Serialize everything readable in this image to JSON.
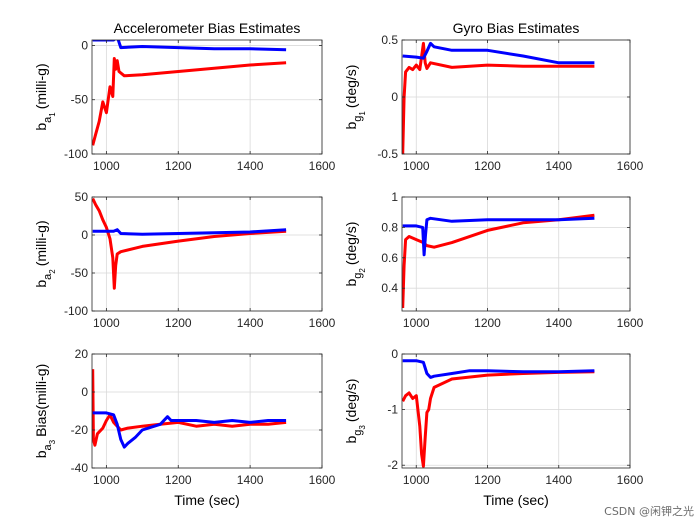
{
  "watermark": "CSDN @闲钾之光",
  "colors": {
    "red": "#ff0000",
    "blue": "#0000ff",
    "axis": "#262626",
    "grid": "#d9d9d9"
  },
  "chart_data": [
    {
      "id": "acc1",
      "type": "line",
      "title": "Accelerometer Bias Estimates",
      "ylabel": {
        "main": "b",
        "sub": "a",
        "subsub": "1",
        "unit": "(milli-g)"
      },
      "xlabel": "",
      "xlim": [
        960,
        1600
      ],
      "ylim": [
        -100,
        5
      ],
      "xticks": [
        1000,
        1200,
        1400,
        1600
      ],
      "yticks": [
        0,
        -50,
        -100
      ],
      "grid": true,
      "series": [
        {
          "name": "red",
          "color": "#ff0000",
          "x": [
            962,
            970,
            980,
            990,
            1000,
            1010,
            1018,
            1022,
            1026,
            1030,
            1035,
            1050,
            1100,
            1200,
            1300,
            1400,
            1500
          ],
          "y": [
            -92,
            -82,
            -70,
            -52,
            -62,
            -38,
            -47,
            -12,
            -22,
            -14,
            -24,
            -28,
            -27,
            -24,
            -21,
            -18,
            -16
          ]
        },
        {
          "name": "blue",
          "color": "#0000ff",
          "x": [
            962,
            1000,
            1020,
            1030,
            1040,
            1100,
            1200,
            1300,
            1400,
            1500
          ],
          "y": [
            5,
            5,
            5,
            8,
            -2,
            -1,
            -2,
            -3,
            -3,
            -4
          ]
        }
      ]
    },
    {
      "id": "gyr1",
      "type": "line",
      "title": "Gyro Bias Estimates",
      "ylabel": {
        "main": "b",
        "sub": "g",
        "subsub": "1",
        "unit": "(deg/s)"
      },
      "xlabel": "",
      "xlim": [
        960,
        1600
      ],
      "ylim": [
        -0.5,
        0.5
      ],
      "xticks": [
        1000,
        1200,
        1400,
        1600
      ],
      "yticks": [
        0.5,
        0,
        -0.5
      ],
      "grid": true,
      "series": [
        {
          "name": "red",
          "color": "#ff0000",
          "x": [
            962,
            966,
            970,
            980,
            990,
            1000,
            1010,
            1020,
            1025,
            1030,
            1040,
            1100,
            1200,
            1300,
            1400,
            1500
          ],
          "y": [
            -0.5,
            0.0,
            0.22,
            0.26,
            0.24,
            0.28,
            0.24,
            0.47,
            0.3,
            0.25,
            0.3,
            0.26,
            0.28,
            0.27,
            0.27,
            0.27
          ]
        },
        {
          "name": "blue",
          "color": "#0000ff",
          "x": [
            962,
            1000,
            1020,
            1030,
            1040,
            1050,
            1100,
            1200,
            1300,
            1400,
            1500
          ],
          "y": [
            0.36,
            0.35,
            0.34,
            0.4,
            0.47,
            0.44,
            0.41,
            0.41,
            0.36,
            0.3,
            0.3
          ]
        }
      ]
    },
    {
      "id": "acc2",
      "type": "line",
      "title": "",
      "ylabel": {
        "main": "b",
        "sub": "a",
        "subsub": "2",
        "unit": "(milli-g)"
      },
      "xlabel": "",
      "xlim": [
        960,
        1600
      ],
      "ylim": [
        -100,
        50
      ],
      "xticks": [
        1000,
        1200,
        1400,
        1600
      ],
      "yticks": [
        50,
        0,
        -50,
        -100
      ],
      "grid": true,
      "series": [
        {
          "name": "red",
          "color": "#ff0000",
          "x": [
            962,
            970,
            980,
            990,
            1000,
            1010,
            1018,
            1022,
            1026,
            1030,
            1040,
            1100,
            1200,
            1300,
            1400,
            1500
          ],
          "y": [
            48,
            40,
            32,
            20,
            10,
            -5,
            -30,
            -70,
            -40,
            -25,
            -22,
            -15,
            -8,
            -2,
            2,
            5
          ]
        },
        {
          "name": "blue",
          "color": "#0000ff",
          "x": [
            962,
            1000,
            1020,
            1030,
            1040,
            1100,
            1200,
            1300,
            1400,
            1500
          ],
          "y": [
            5,
            5,
            5,
            7,
            2,
            1,
            2,
            3,
            4,
            7
          ]
        }
      ]
    },
    {
      "id": "gyr2",
      "type": "line",
      "title": "",
      "ylabel": {
        "main": "b",
        "sub": "g",
        "subsub": "2",
        "unit": "(deg/s)"
      },
      "xlabel": "",
      "xlim": [
        960,
        1600
      ],
      "ylim": [
        0.25,
        1
      ],
      "xticks": [
        1000,
        1200,
        1400,
        1600
      ],
      "yticks": [
        1,
        0.8,
        0.6,
        0.4
      ],
      "grid": true,
      "series": [
        {
          "name": "red",
          "color": "#ff0000",
          "x": [
            962,
            966,
            970,
            980,
            1000,
            1020,
            1030,
            1050,
            1100,
            1200,
            1300,
            1400,
            1500
          ],
          "y": [
            0.27,
            0.55,
            0.72,
            0.74,
            0.72,
            0.7,
            0.68,
            0.67,
            0.7,
            0.78,
            0.83,
            0.85,
            0.88
          ]
        },
        {
          "name": "blue",
          "color": "#0000ff",
          "x": [
            962,
            1000,
            1018,
            1022,
            1026,
            1030,
            1040,
            1100,
            1200,
            1300,
            1400,
            1500
          ],
          "y": [
            0.81,
            0.81,
            0.8,
            0.62,
            0.75,
            0.85,
            0.86,
            0.84,
            0.85,
            0.85,
            0.85,
            0.86
          ]
        }
      ]
    },
    {
      "id": "acc3",
      "type": "line",
      "title": "",
      "ylabel": {
        "main": "b",
        "sub": "a",
        "subsub": "3",
        "unit": "Bias(milli-g)"
      },
      "xlabel": "Time (sec)",
      "xlim": [
        960,
        1600
      ],
      "ylim": [
        -40,
        20
      ],
      "xticks": [
        1000,
        1200,
        1400,
        1600
      ],
      "yticks": [
        20,
        0,
        -20,
        -40
      ],
      "grid": true,
      "series": [
        {
          "name": "red",
          "color": "#ff0000",
          "x": [
            962,
            964,
            968,
            975,
            990,
            1000,
            1010,
            1020,
            1030,
            1040,
            1060,
            1100,
            1150,
            1200,
            1250,
            1300,
            1350,
            1400,
            1450,
            1500
          ],
          "y": [
            12,
            -25,
            -28,
            -22,
            -19,
            -15,
            -12,
            -16,
            -18,
            -20,
            -19,
            -18,
            -17,
            -16,
            -18,
            -17,
            -18,
            -17,
            -17,
            -16
          ]
        },
        {
          "name": "blue",
          "color": "#0000ff",
          "x": [
            962,
            1000,
            1020,
            1030,
            1040,
            1050,
            1060,
            1080,
            1100,
            1150,
            1170,
            1180,
            1200,
            1250,
            1300,
            1350,
            1400,
            1450,
            1500
          ],
          "y": [
            -11,
            -11,
            -12,
            -17,
            -25,
            -29,
            -27,
            -24,
            -20,
            -17,
            -13,
            -15,
            -15,
            -15,
            -16,
            -15,
            -16,
            -15,
            -15
          ]
        }
      ]
    },
    {
      "id": "gyr3",
      "type": "line",
      "title": "",
      "ylabel": {
        "main": "b",
        "sub": "g",
        "subsub": "3",
        "unit": "(deg/s)"
      },
      "xlabel": "Time (sec)",
      "xlim": [
        960,
        1600
      ],
      "ylim": [
        -2.05,
        0
      ],
      "xticks": [
        1000,
        1200,
        1400,
        1600
      ],
      "yticks": [
        0,
        -1,
        -2
      ],
      "grid": true,
      "series": [
        {
          "name": "red",
          "color": "#ff0000",
          "x": [
            962,
            970,
            980,
            990,
            1000,
            1010,
            1015,
            1020,
            1025,
            1030,
            1035,
            1040,
            1050,
            1100,
            1200,
            1300,
            1400,
            1500
          ],
          "y": [
            -0.85,
            -0.75,
            -0.7,
            -0.8,
            -0.75,
            -1.3,
            -1.8,
            -2.02,
            -1.5,
            -1.05,
            -1.0,
            -0.8,
            -0.6,
            -0.45,
            -0.38,
            -0.35,
            -0.33,
            -0.32
          ]
        },
        {
          "name": "blue",
          "color": "#0000ff",
          "x": [
            962,
            1000,
            1020,
            1030,
            1040,
            1050,
            1100,
            1150,
            1200,
            1300,
            1400,
            1500
          ],
          "y": [
            -0.12,
            -0.12,
            -0.15,
            -0.35,
            -0.42,
            -0.4,
            -0.35,
            -0.3,
            -0.3,
            -0.32,
            -0.32,
            -0.3
          ]
        }
      ]
    }
  ]
}
